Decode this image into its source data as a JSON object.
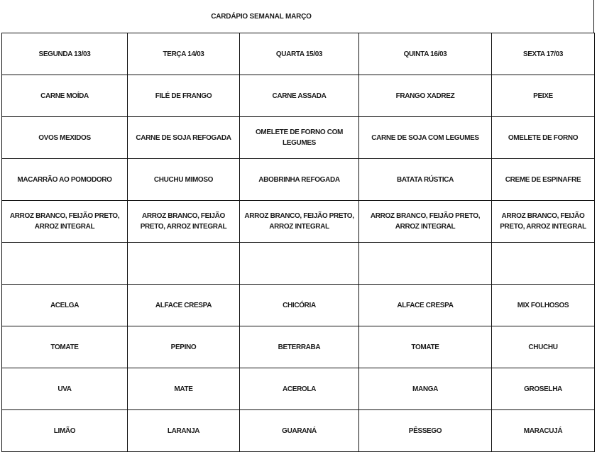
{
  "title": "CARDÁPIO SEMANAL MARÇO",
  "rows": [
    [
      "SEGUNDA 13/03",
      "TERÇA 14/03",
      "QUARTA 15/03",
      "QUINTA  16/03",
      "SEXTA 17/03"
    ],
    [
      "CARNE MOÍDA",
      "FILÉ DE FRANGO",
      "CARNE ASSADA",
      "FRANGO XADREZ",
      "PEIXE"
    ],
    [
      "OVOS MEXIDOS",
      "CARNE DE SOJA REFOGADA",
      "OMELETE DE FORNO COM LEGUMES",
      "CARNE DE SOJA COM LEGUMES",
      "OMELETE DE FORNO"
    ],
    [
      "MACARRÃO AO POMODORO",
      "CHUCHU MIMOSO",
      "ABOBRINHA REFOGADA",
      "BATATA RÚSTICA",
      "CREME DE ESPINAFRE"
    ],
    [
      "ARROZ BRANCO, FEIJÃO PRETO, ARROZ INTEGRAL",
      "ARROZ BRANCO, FEIJÃO PRETO, ARROZ INTEGRAL",
      "ARROZ BRANCO, FEIJÃO PRETO, ARROZ INTEGRAL",
      "ARROZ BRANCO, FEIJÃO PRETO, ARROZ INTEGRAL",
      "ARROZ BRANCO, FEIJÃO PRETO, ARROZ INTEGRAL"
    ],
    [
      "",
      "",
      "",
      "",
      ""
    ],
    [
      "ACELGA",
      "ALFACE CRESPA",
      "CHICÓRIA",
      "ALFACE CRESPA",
      "MIX FOLHOSOS"
    ],
    [
      "TOMATE",
      "PEPINO",
      "BETERRABA",
      "TOMATE",
      "CHUCHU"
    ],
    [
      "UVA",
      "MATE",
      "ACEROLA",
      "MANGA",
      "GROSELHA"
    ],
    [
      "LIMÃO",
      "LARANJA",
      "GUARANÁ",
      "PÊSSEGO",
      "MARACUJÁ"
    ]
  ]
}
